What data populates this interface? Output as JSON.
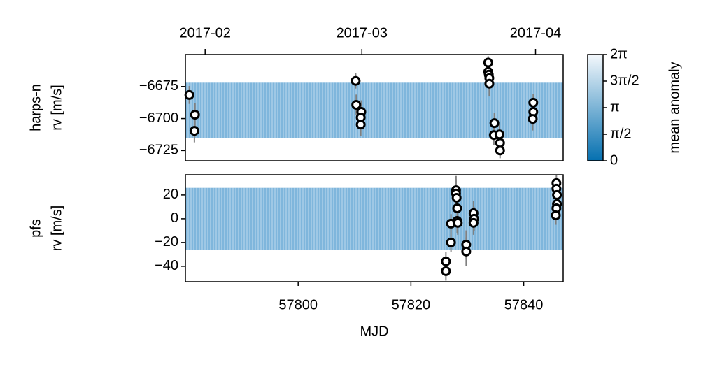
{
  "chart_data": [
    {
      "type": "scatter",
      "ylabel": [
        "harps-n",
        "rv [m/s]"
      ],
      "xlim": [
        57780,
        57847
      ],
      "ylim": [
        -6733,
        -6650
      ],
      "yticks": [
        {
          "value": -6675,
          "label": "−6675"
        },
        {
          "value": -6700,
          "label": "−6700"
        },
        {
          "value": -6725,
          "label": "−6725"
        }
      ],
      "x2ticks": [
        {
          "value": 57783.5,
          "label": "2017-02"
        },
        {
          "value": 57811.3,
          "label": "2017-03"
        },
        {
          "value": 57842.1,
          "label": "2017-04"
        }
      ],
      "model_band": [
        -6715,
        -6672
      ],
      "model_color": "#7fb6dc",
      "series": [
        {
          "color": "#000000",
          "error_color": "#808080",
          "x": [
            57780.7,
            57781.7,
            57781.6,
            57810.2,
            57810.3,
            57811.2,
            57811.1,
            57811.1,
            57833.7,
            57833.7,
            57833.8,
            57833.9,
            57833.9,
            57834.8,
            57834.7,
            57835.7,
            57835.8,
            57835.8,
            57841.7,
            57841.7,
            57841.6
          ],
          "values": [
            -6681.6,
            -6697,
            -6709.6,
            -6670.6,
            -6689.3,
            -6694.8,
            -6699.2,
            -6704.7,
            -6656.3,
            -6663.5,
            -6665.7,
            -6668.4,
            -6672.8,
            -6703.6,
            -6712.9,
            -6712.4,
            -6719,
            -6725,
            -6687.6,
            -6694.8,
            -6700.3
          ],
          "errors": [
            7,
            9,
            9,
            6,
            8,
            9,
            9,
            9,
            5,
            6,
            6,
            6,
            10,
            8,
            8,
            8,
            6,
            6,
            7,
            10,
            9
          ]
        }
      ],
      "colorbar": {
        "label": "mean anomaly",
        "colors": [
          "#0570b0",
          "#f4f8fc"
        ],
        "lim": [
          0,
          6.2832
        ],
        "ticks": [
          {
            "value": 0,
            "label": "0"
          },
          {
            "value": 1.5708,
            "label": "π/2"
          },
          {
            "value": 3.1416,
            "label": "π"
          },
          {
            "value": 4.7124,
            "label": "3π/2"
          },
          {
            "value": 6.2832,
            "label": "2π"
          }
        ]
      }
    },
    {
      "type": "scatter",
      "ylabel": [
        "pfs",
        "rv [m/s]"
      ],
      "xlabel": "MJD",
      "xlim": [
        57780,
        57847
      ],
      "ylim": [
        -53,
        37
      ],
      "xticks": [
        57800,
        57820,
        57840
      ],
      "yticks": [
        20,
        0,
        {
          "value": -20,
          "label": "−20"
        },
        {
          "value": -40,
          "label": "−40"
        }
      ],
      "model_band": [
        -26,
        26
      ],
      "model_color": "#7fb6dc",
      "series": [
        {
          "color": "#000000",
          "error_color": "#808080",
          "x": [
            57826.2,
            57826.2,
            57827.1,
            57827.1,
            57828,
            57828,
            57828.1,
            57828.2,
            57828.2,
            57828.3,
            57829.8,
            57829.8,
            57831.1,
            57831.2,
            57831.1,
            57845.8,
            57845.8,
            57845.9,
            57845.9,
            57845.8,
            57845.7
          ],
          "values": [
            -35.9,
            -44.1,
            -4.1,
            -20,
            24,
            21.2,
            17.6,
            8.8,
            -1.8,
            -3.5,
            -21.8,
            -27.6,
            4.7,
            0,
            -3.5,
            30,
            25.3,
            20,
            12.4,
            8.8,
            2.9
          ],
          "errors": [
            8,
            8,
            8,
            8,
            12,
            12,
            10,
            10,
            10,
            10,
            12,
            12,
            10,
            10,
            10,
            8,
            8,
            8,
            8,
            8,
            8
          ]
        }
      ]
    }
  ]
}
